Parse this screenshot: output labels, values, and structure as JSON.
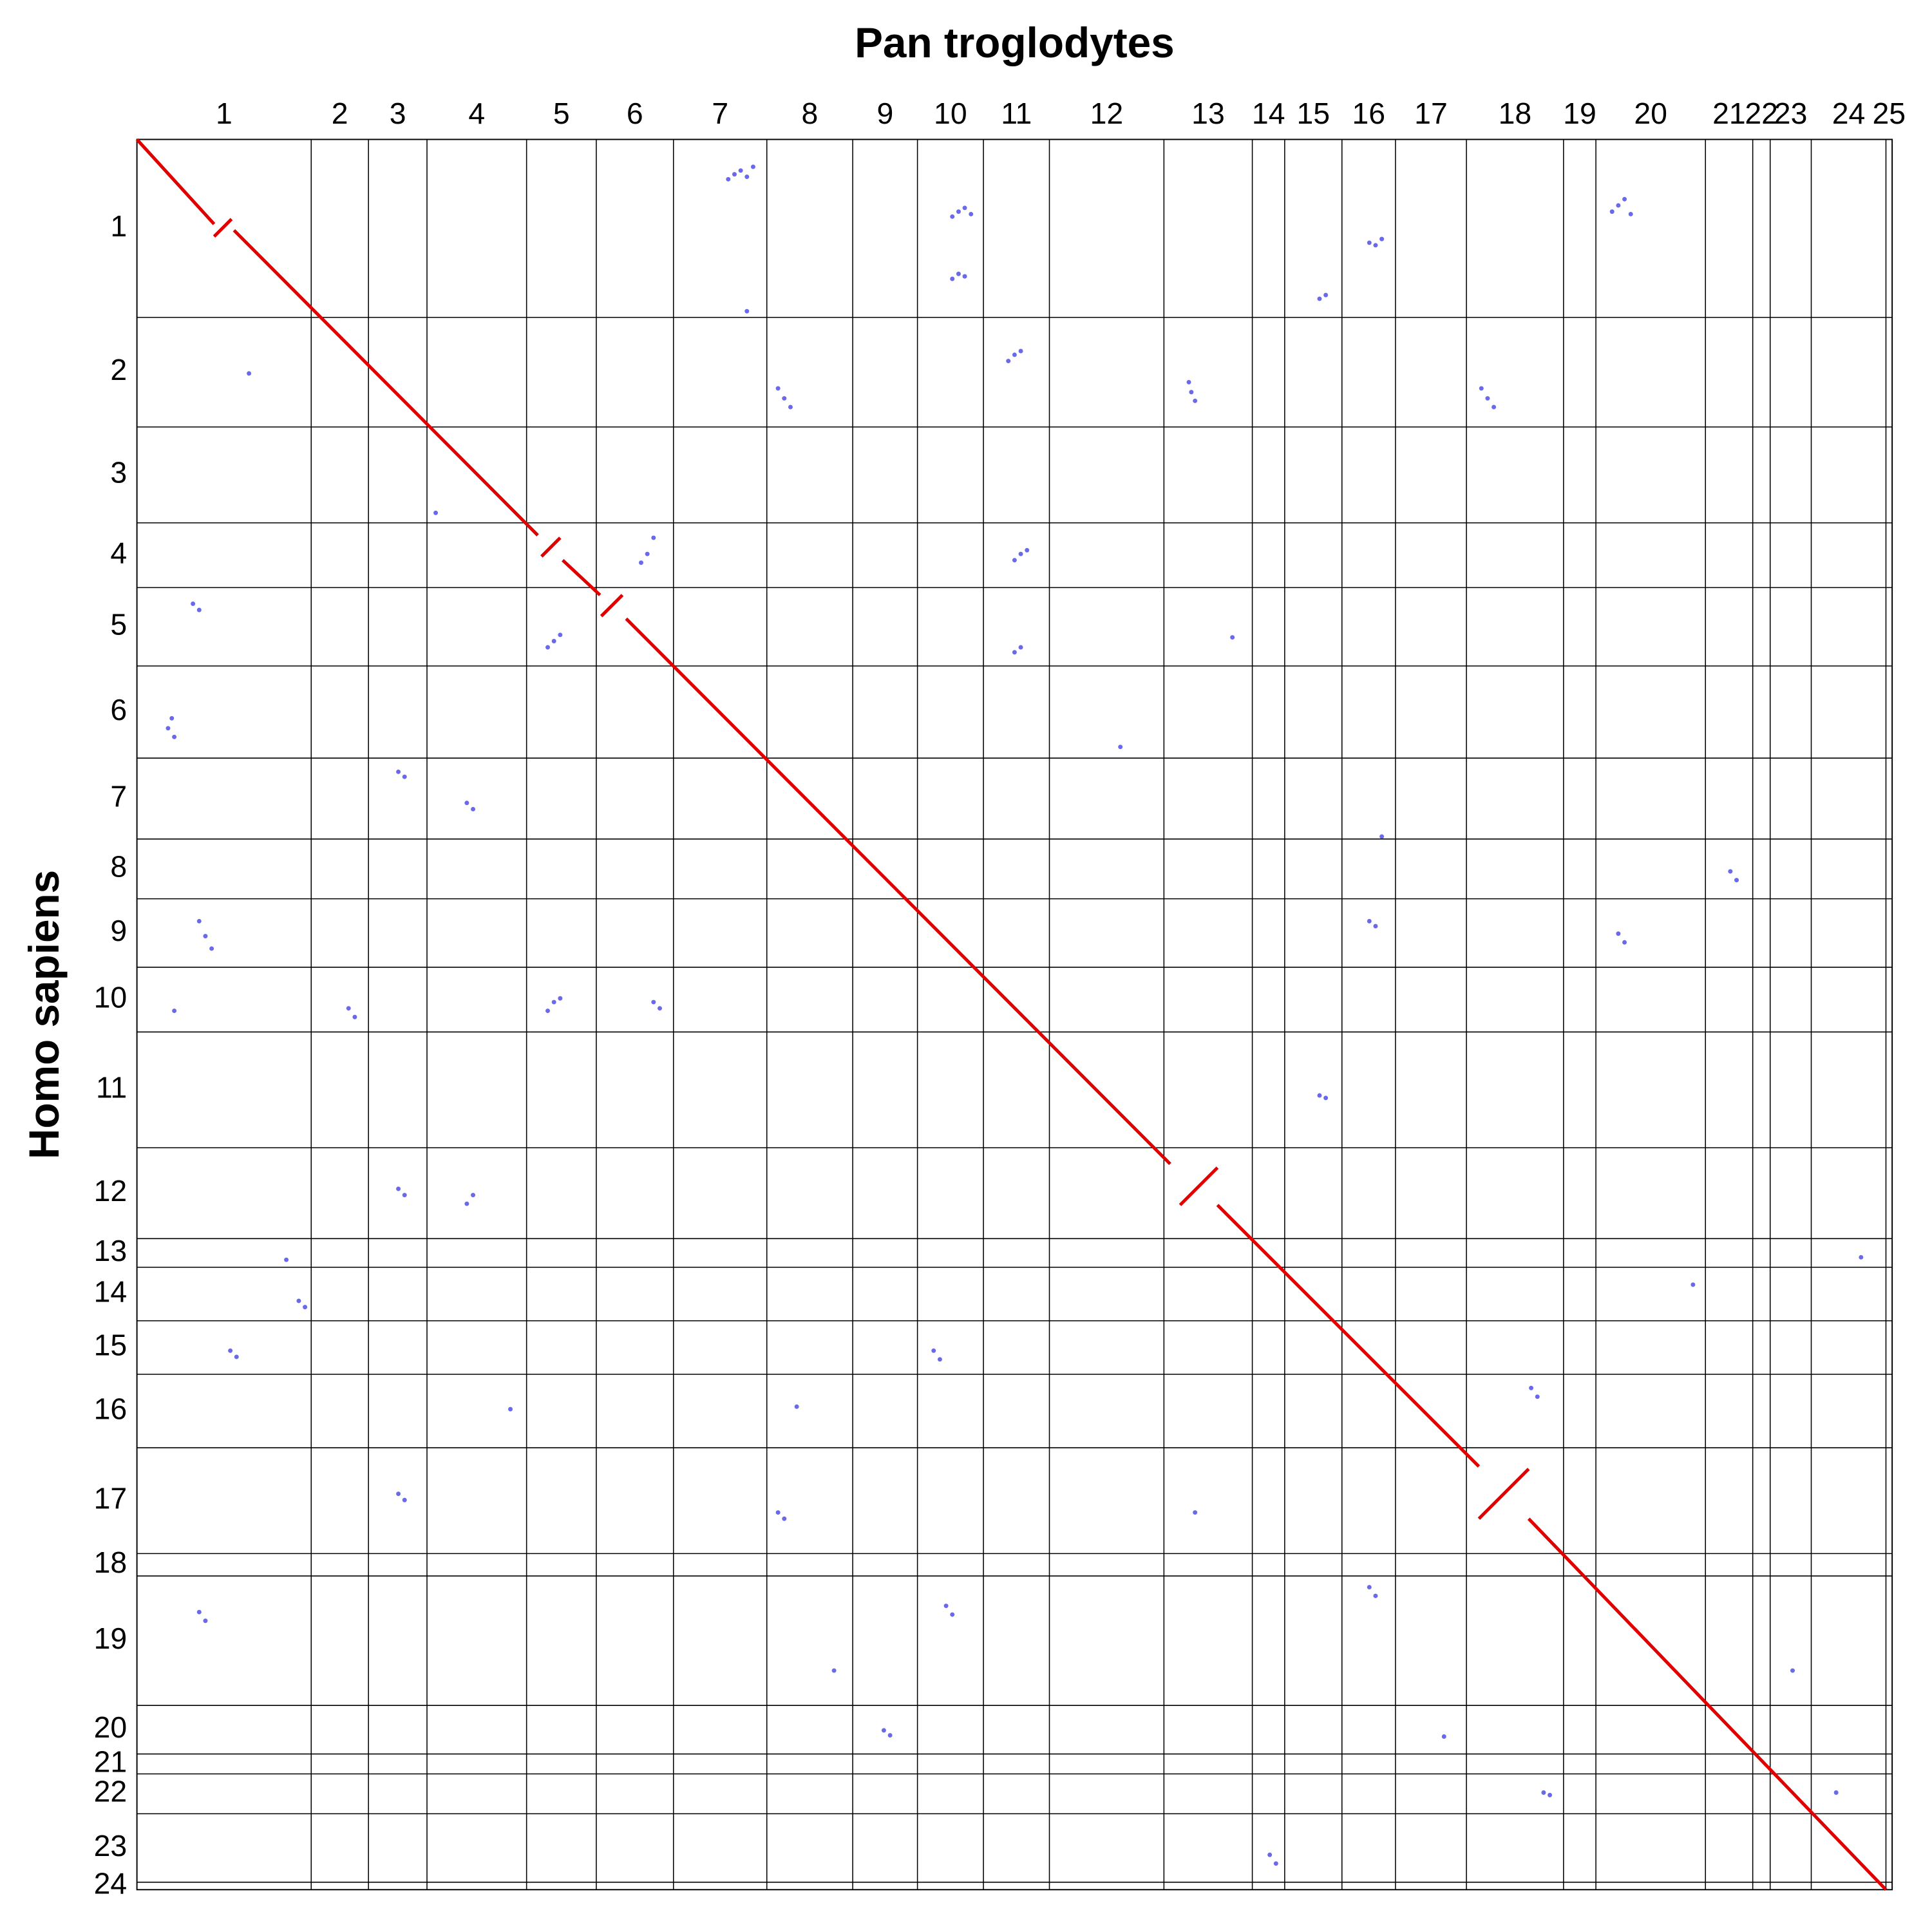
{
  "chart_data": {
    "type": "scatter",
    "title": "Pan troglodytes",
    "ylabel": "Homo sapiens",
    "xlim": [
      0,
      1410
    ],
    "ylim": [
      0,
      1406
    ],
    "y_inverted": true,
    "grid": true,
    "x_chromosomes": [
      {
        "label": "1",
        "start": 0,
        "end": 140
      },
      {
        "label": "2",
        "start": 140,
        "end": 186
      },
      {
        "label": "3",
        "start": 186,
        "end": 233
      },
      {
        "label": "4",
        "start": 233,
        "end": 313
      },
      {
        "label": "5",
        "start": 313,
        "end": 369
      },
      {
        "label": "6",
        "start": 369,
        "end": 431
      },
      {
        "label": "7",
        "start": 431,
        "end": 506
      },
      {
        "label": "8",
        "start": 506,
        "end": 575
      },
      {
        "label": "9",
        "start": 575,
        "end": 627
      },
      {
        "label": "10",
        "start": 627,
        "end": 680
      },
      {
        "label": "11",
        "start": 680,
        "end": 733
      },
      {
        "label": "12",
        "start": 733,
        "end": 825
      },
      {
        "label": "13",
        "start": 825,
        "end": 896
      },
      {
        "label": "14",
        "start": 896,
        "end": 922
      },
      {
        "label": "15",
        "start": 922,
        "end": 968
      },
      {
        "label": "16",
        "start": 968,
        "end": 1011
      },
      {
        "label": "17",
        "start": 1011,
        "end": 1068
      },
      {
        "label": "18",
        "start": 1068,
        "end": 1146
      },
      {
        "label": "19",
        "start": 1146,
        "end": 1172
      },
      {
        "label": "20",
        "start": 1172,
        "end": 1260
      },
      {
        "label": "21",
        "start": 1260,
        "end": 1298
      },
      {
        "label": "22",
        "start": 1298,
        "end": 1312
      },
      {
        "label": "23",
        "start": 1312,
        "end": 1345
      },
      {
        "label": "24",
        "start": 1345,
        "end": 1405
      },
      {
        "label": "25",
        "start": 1405,
        "end": 1410
      }
    ],
    "y_chromosomes": [
      {
        "label": "1",
        "start": 0,
        "end": 143
      },
      {
        "label": "2",
        "start": 143,
        "end": 231
      },
      {
        "label": "3",
        "start": 231,
        "end": 308
      },
      {
        "label": "4",
        "start": 308,
        "end": 360
      },
      {
        "label": "5",
        "start": 360,
        "end": 423
      },
      {
        "label": "6",
        "start": 423,
        "end": 497
      },
      {
        "label": "7",
        "start": 497,
        "end": 562
      },
      {
        "label": "8",
        "start": 562,
        "end": 610
      },
      {
        "label": "9",
        "start": 610,
        "end": 665
      },
      {
        "label": "10",
        "start": 665,
        "end": 717
      },
      {
        "label": "11",
        "start": 717,
        "end": 810
      },
      {
        "label": "12",
        "start": 810,
        "end": 883
      },
      {
        "label": "13",
        "start": 883,
        "end": 906
      },
      {
        "label": "14",
        "start": 906,
        "end": 949
      },
      {
        "label": "15",
        "start": 949,
        "end": 992
      },
      {
        "label": "16",
        "start": 992,
        "end": 1051
      },
      {
        "label": "17",
        "start": 1051,
        "end": 1136
      },
      {
        "label": "18",
        "start": 1136,
        "end": 1154
      },
      {
        "label": "19",
        "start": 1154,
        "end": 1258
      },
      {
        "label": "20",
        "start": 1258,
        "end": 1297
      },
      {
        "label": "21",
        "start": 1297,
        "end": 1313
      },
      {
        "label": "22",
        "start": 1313,
        "end": 1345
      },
      {
        "label": "23",
        "start": 1345,
        "end": 1400
      },
      {
        "label": "24",
        "start": 1400,
        "end": 1406
      }
    ],
    "series": [
      {
        "mode": "points",
        "color": "#2a2ae0",
        "x": [
          480,
          485,
          490,
          475,
          495,
          660,
          665,
          655,
          670,
          660,
          665,
          655,
          1190,
          1195,
          1185,
          1200,
          990,
          995,
          1000,
          950,
          955,
          847,
          850,
          845,
          520,
          515,
          525,
          705,
          710,
          700,
          1085,
          1090,
          1080,
          710,
          715,
          705,
          410,
          415,
          405,
          335,
          340,
          330,
          710,
          705,
          25,
          30,
          28,
          45,
          50,
          210,
          215,
          265,
          270,
          1280,
          1285,
          50,
          55,
          60,
          1190,
          1195,
          990,
          995,
          335,
          340,
          330,
          415,
          420,
          170,
          175,
          950,
          955,
          210,
          215,
          270,
          265,
          75,
          80,
          130,
          135,
          640,
          645,
          1120,
          1125,
          530,
          210,
          215,
          515,
          520,
          850,
          50,
          55,
          650,
          655,
          990,
          995,
          600,
          605,
          1050,
          1130,
          1135,
          910,
          915,
          1385,
          1365,
          90,
          490,
          790,
          240,
          120,
          1000,
          300,
          1250,
          560,
          880,
          30,
          1330
        ],
        "values": [
          28,
          25,
          30,
          32,
          22,
          58,
          55,
          62,
          60,
          108,
          110,
          112,
          53,
          48,
          58,
          60,
          83,
          85,
          80,
          128,
          125,
          203,
          210,
          195,
          208,
          200,
          215,
          173,
          170,
          178,
          208,
          215,
          200,
          333,
          330,
          338,
          333,
          320,
          340,
          403,
          398,
          408,
          408,
          412,
          473,
          480,
          465,
          373,
          378,
          508,
          512,
          533,
          538,
          588,
          595,
          628,
          640,
          650,
          638,
          645,
          628,
          632,
          693,
          690,
          700,
          693,
          698,
          698,
          705,
          768,
          770,
          843,
          848,
          848,
          855,
          973,
          978,
          933,
          938,
          973,
          980,
          1003,
          1010,
          1018,
          1088,
          1093,
          1103,
          1108,
          1103,
          1183,
          1190,
          1178,
          1185,
          1163,
          1170,
          1278,
          1282,
          1283,
          1328,
          1330,
          1378,
          1385,
          898,
          1328,
          188,
          138,
          488,
          300,
          900,
          560,
          1020,
          920,
          1230,
          400,
          700,
          1230
        ]
      },
      {
        "mode": "line",
        "color": "#e00000",
        "x": [
          0,
          62,
          null,
          62,
          76,
          null,
          78,
          322,
          null,
          325,
          340,
          null,
          342,
          372,
          null,
          373,
          390,
          null,
          393,
          830,
          null,
          838,
          868,
          null,
          868,
          1078,
          null,
          1078,
          1118,
          null,
          1118,
          1405
        ],
        "values": [
          0,
          68,
          null,
          78,
          64,
          null,
          73,
          318,
          null,
          335,
          320,
          null,
          338,
          366,
          null,
          383,
          366,
          null,
          385,
          823,
          null,
          856,
          826,
          null,
          856,
          1066,
          null,
          1108,
          1068,
          null,
          1108,
          1406
        ]
      }
    ]
  }
}
